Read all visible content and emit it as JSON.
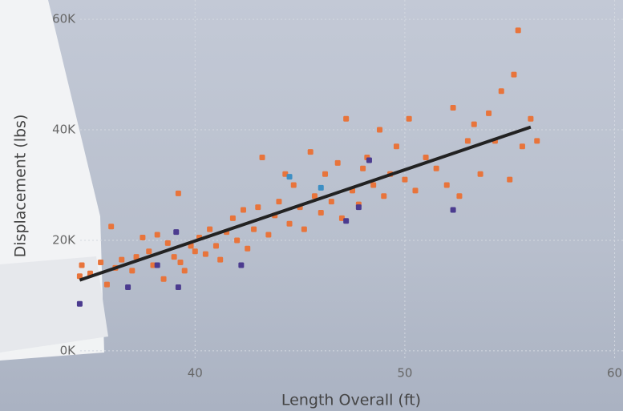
{
  "chart_data": {
    "type": "scatter",
    "x_label": "Length Overall (ft)",
    "y_label": "Displacement (lbs)",
    "xlim": [
      30.7,
      60.4
    ],
    "ylim": [
      -10900,
      63500
    ],
    "xticks": [
      40,
      50,
      60
    ],
    "yticks": [
      {
        "value": 0,
        "label": "0K"
      },
      {
        "value": 20000,
        "label": "20K"
      },
      {
        "value": 40000,
        "label": "40K"
      },
      {
        "value": 60000,
        "label": "60K"
      }
    ],
    "grid": true,
    "series": [
      {
        "color": "#e8743b",
        "x": [
          34.5,
          34.6,
          35,
          35.5,
          35.8,
          36,
          36.2,
          36.5,
          37,
          37.2,
          37.5,
          37.8,
          38,
          38.2,
          38.5,
          38.7,
          39,
          39.2,
          39.3,
          39.5,
          39.8,
          40,
          40.2,
          40.5,
          40.7,
          41,
          41.2,
          41.5,
          41.8,
          42,
          42.3,
          42.5,
          42.8,
          43,
          43.2,
          43.5,
          43.8,
          44,
          44.3,
          44.5,
          44.7,
          45,
          45.2,
          45.5,
          45.7,
          46,
          46.2,
          46.5,
          46.8,
          47,
          47.2,
          47.5,
          47.8,
          48,
          48.2,
          48.5,
          48.8,
          49,
          49.3,
          49.6,
          50,
          50.2,
          50.5,
          51,
          51.5,
          52,
          52.3,
          52.6,
          53,
          53.3,
          53.6,
          54,
          54.3,
          54.6,
          55,
          55.2,
          55.4,
          55.6,
          56,
          56.3
        ],
        "values": [
          13500,
          15500,
          14000,
          16000,
          12000,
          22500,
          15000,
          16500,
          14500,
          17000,
          20500,
          18000,
          15500,
          21000,
          13000,
          19500,
          17000,
          28500,
          16000,
          14500,
          19000,
          18000,
          20500,
          17500,
          22000,
          19000,
          16500,
          21500,
          24000,
          20000,
          25500,
          18500,
          22000,
          26000,
          35000,
          21000,
          24500,
          27000,
          32000,
          23000,
          30000,
          26000,
          22000,
          36000,
          28000,
          25000,
          32000,
          27000,
          34000,
          24000,
          42000,
          29000,
          26500,
          33000,
          35000,
          30000,
          40000,
          28000,
          32000,
          37000,
          31000,
          42000,
          29000,
          35000,
          33000,
          30000,
          44000,
          28000,
          38000,
          41000,
          32000,
          43000,
          38000,
          47000,
          31000,
          50000,
          58000,
          37000,
          42000,
          38000
        ]
      },
      {
        "color": "#4b3b8f",
        "x": [
          34.5,
          36.8,
          38.2,
          39.2,
          39.1,
          42.2,
          47.2,
          48.3,
          52.3,
          47.8
        ],
        "values": [
          8500,
          11500,
          15500,
          11500,
          21500,
          15500,
          23500,
          34500,
          25500,
          26000
        ]
      },
      {
        "color": "#3d8fc4",
        "x": [
          44.5,
          46
        ],
        "values": [
          31500,
          29500
        ]
      }
    ],
    "trend": {
      "color": "#222222",
      "x": [
        34.5,
        56
      ],
      "values": [
        12800,
        40500
      ]
    }
  }
}
